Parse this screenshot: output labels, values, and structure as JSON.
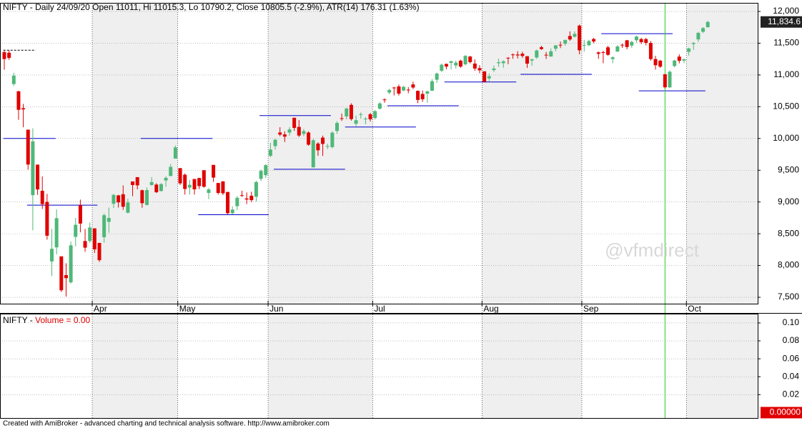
{
  "chart_data": {
    "type": "candlestick",
    "title": "NIFTY - Daily 24/09/20 Open 11011, Hi 11015.3, Lo 10790.2, Close 10805.5 (-2.9%), ATR(14) 176.31  (1.63%)",
    "watermark": "@vfmdirect",
    "footer": "Created with AmiBroker - advanced charting and technical analysis software. http://www.amibroker.com",
    "up_color": "#4fb878",
    "down_color": "#e00000",
    "categories": [
      null,
      null,
      null,
      null,
      null,
      null,
      null,
      null,
      null,
      null,
      null,
      null,
      null,
      null,
      null,
      null,
      null,
      null,
      null,
      "Apr",
      null,
      null,
      null,
      null,
      null,
      null,
      null,
      null,
      null,
      null,
      null,
      null,
      null,
      null,
      null,
      null,
      null,
      "May",
      null,
      null,
      null,
      null,
      null,
      null,
      null,
      null,
      null,
      null,
      null,
      null,
      null,
      null,
      null,
      null,
      null,
      null,
      "Jun",
      null,
      null,
      null,
      null,
      null,
      null,
      null,
      null,
      null,
      null,
      null,
      null,
      null,
      null,
      null,
      null,
      null,
      null,
      null,
      null,
      null,
      "Jul",
      null,
      null,
      null,
      null,
      null,
      null,
      null,
      null,
      null,
      null,
      null,
      null,
      null,
      null,
      null,
      null,
      null,
      null,
      null,
      null,
      null,
      null,
      "Aug",
      null,
      null,
      null,
      null,
      null,
      null,
      null,
      null,
      null,
      null,
      null,
      null,
      null,
      null,
      null,
      null,
      null,
      null,
      null,
      null,
      "Sep",
      null,
      null,
      null,
      null,
      null,
      null,
      null,
      null,
      null,
      null,
      null,
      null,
      null,
      null,
      null,
      null,
      null,
      null,
      null,
      null,
      null,
      "Oct",
      null,
      null,
      null,
      null
    ],
    "open": [
      11359,
      11350,
      10857,
      10743,
      10477,
      10139,
      9108,
      9588,
      9176,
      9001,
      8064,
      8286,
      8144,
      7849,
      7735,
      8451,
      8949,
      8385,
      8385,
      8584,
      8356,
      8446,
      8688,
      8973,
      9104,
      9122,
      8831,
      9323,
      9391,
      9185,
      8953,
      9268,
      9274,
      9173,
      9339,
      9409,
      9684,
      9533,
      9429,
      9227,
      9362,
      9377,
      9500,
      9143,
      9584,
      9299,
      9325,
      9158,
      8823,
      8934,
      9107,
      9056,
      9099,
      9083,
      9364,
      9422,
      9727,
      9880,
      10094,
      10064,
      10093,
      10326,
      10182,
      10072,
      10094,
      9545,
      9920,
      10014,
      9876,
      9864,
      10119,
      10319,
      10347,
      10529,
      10232,
      10379,
      10311,
      10382,
      10323,
      10469,
      10614,
      10723,
      10802,
      10819,
      10755,
      10769,
      10851,
      10750,
      10701,
      10706,
      10752,
      10925,
      11066,
      11174,
      11190,
      11149,
      11225,
      11168,
      11290,
      11179,
      11108,
      11057,
      10946,
      11077,
      11185,
      11186,
      11271,
      11323,
      11322,
      11334,
      11295,
      11228,
      11275,
      11437,
      11318,
      11290,
      11413,
      11475,
      11491,
      11613,
      11602,
      11777,
      11464,
      11469,
      11566,
      11355,
      11359,
      11435,
      11250,
      11369,
      11475,
      11546,
      11463,
      11546,
      11565,
      11564,
      11504,
      11251,
      11225,
      11011,
      10805,
      11141,
      11289,
      11226,
      11364,
      11487,
      11560,
      11680,
      11752
    ],
    "high": [
      11388,
      11389,
      11035,
      10751,
      10545,
      10139,
      10159,
      9588,
      9403,
      9128,
      8575,
      8883,
      8144,
      8036,
      8376,
      8749,
      9038,
      8576,
      8678,
      8588,
      8357,
      8819,
      8914,
      9128,
      9112,
      9261,
      9053,
      9324,
      9391,
      9195,
      9230,
      9392,
      9296,
      9295,
      9405,
      9599,
      9889,
      9533,
      9450,
      9347,
      9361,
      9382,
      9500,
      9219,
      9584,
      9298,
      9326,
      9158,
      8932,
      9093,
      9178,
      9150,
      9161,
      9334,
      9511,
      9598,
      9931,
      9996,
      10177,
      10113,
      10178,
      10328,
      10291,
      10149,
      10112,
      9996,
      9943,
      10046,
      9918,
      10111,
      10272,
      10393,
      10484,
      10554,
      10361,
      10409,
      10337,
      10401,
      10447,
      10572,
      10631,
      10782,
      10813,
      10848,
      10827,
      10809,
      10894,
      10755,
      10755,
      10755,
      10934,
      11038,
      11180,
      11180,
      11226,
      11226,
      11240,
      11314,
      11299,
      11246,
      11154,
      11058,
      11022,
      11147,
      11256,
      11232,
      11281,
      11338,
      11374,
      11366,
      11295,
      11256,
      11401,
      11460,
      11361,
      11419,
      11472,
      11525,
      11561,
      11687,
      11686,
      11794,
      11553,
      11556,
      11584,
      11370,
      11381,
      11459,
      11293,
      11469,
      11494,
      11552,
      11536,
      11618,
      11585,
      11584,
      11535,
      11302,
      11236,
      11015.3,
      11072,
      11240,
      11325,
      11259,
      11429,
      11519,
      11680,
      11753,
      11852
    ],
    "low": [
      11082,
      11238,
      10827,
      10294,
      10176,
      9508,
      8555,
      9113,
      8891,
      8407,
      7833,
      8176,
      7583,
      7511,
      7715,
      8304,
      8522,
      8215,
      8358,
      8198,
      8056,
      8360,
      8517,
      8905,
      8912,
      8875,
      8821,
      9091,
      9199,
      8909,
      8946,
      9256,
      9141,
      9165,
      9240,
      9405,
      9684,
      9266,
      9117,
      9117,
      9116,
      9203,
      9226,
      9044,
      9317,
      9116,
      9110,
      8807,
      8806,
      8874,
      9079,
      8968,
      8996,
      9005,
      9330,
      9376,
      9706,
      9825,
      10036,
      9944,
      10041,
      10120,
      10022,
      10036,
      9885,
      9544,
      9728,
      9726,
      9833,
      9846,
      10073,
      10277,
      10301,
      10281,
      10194,
      10311,
      10223,
      10267,
      10299,
      10458,
      10562,
      10695,
      10677,
      10676,
      10745,
      10713,
      10777,
      10555,
      10577,
      10562,
      10749,
      10875,
      11046,
      11090,
      11087,
      11102,
      11114,
      11151,
      11181,
      11067,
      11026,
      10882,
      10902,
      11048,
      11127,
      11112,
      11169,
      11255,
      11260,
      11269,
      11111,
      11145,
      11254,
      11394,
      11253,
      11289,
      11371,
      11423,
      11461,
      11537,
      11589,
      11325,
      11367,
      11452,
      11499,
      11253,
      11185,
      11303,
      11185,
      11361,
      11427,
      11404,
      11426,
      11507,
      11486,
      11465,
      11226,
      11085,
      11111,
      10790.2,
      10797,
      11121,
      11183,
      11185,
      11306,
      11394,
      11521,
      11661,
      11745
    ],
    "close": [
      11251,
      11269,
      10989,
      10451,
      10458,
      9590,
      9955,
      9197,
      8967,
      8469,
      8263,
      8745,
      7610,
      7801,
      8318,
      8641,
      8660,
      8281,
      8598,
      8254,
      8084,
      8792,
      8748,
      9111,
      8994,
      8925,
      8992,
      9267,
      9262,
      8981,
      9187,
      9313,
      9154,
      9282,
      9380,
      9553,
      9860,
      9293,
      9205,
      9270,
      9199,
      9251,
      9240,
      9197,
      9384,
      9142,
      9137,
      8823,
      8880,
      9066,
      9106,
      9039,
      9029,
      9314,
      9490,
      9580,
      9826,
      9980,
      10061,
      10029,
      10142,
      10167,
      10046,
      10116,
      9902,
      9972,
      9814,
      9914,
      9881,
      10092,
      10244,
      10311,
      10471,
      10305,
      10288,
      10383,
      10312,
      10302,
      10430,
      10552,
      10607,
      10764,
      10799,
      10706,
      10813,
      10768,
      10802,
      10607,
      10618,
      10740,
      10901,
      11022,
      11162,
      11132,
      11215,
      11194,
      11131,
      11300,
      11202,
      11102,
      11073,
      10892,
      10980,
      11101,
      11200,
      11214,
      11270,
      11322,
      11308,
      11300,
      11178,
      11247,
      11385,
      11408,
      11312,
      11372,
      11466,
      11472,
      11549,
      11559,
      11647,
      11388,
      11470,
      11535,
      11527,
      11333,
      11355,
      11317,
      11278,
      11449,
      11464,
      11440,
      11521,
      11605,
      11516,
      11505,
      11250,
      11153,
      11131,
      10805.5,
      11050,
      11227,
      11222,
      11247,
      11417,
      11503,
      11662,
      11738,
      11834.6
    ],
    "last_label": "11,834.6",
    "selected_bar": 139,
    "cursor_color": "#22cc22",
    "level_color": "#0000cc",
    "levels": [
      {
        "value": 10000,
        "start": -0.2,
        "end": 10.8
      },
      {
        "value": 8950,
        "start": 4.8,
        "end": 19.6
      },
      {
        "value": 10000,
        "start": 28.7,
        "end": 43.8
      },
      {
        "value": 8800,
        "start": 40.8,
        "end": 55.6
      },
      {
        "value": 10360,
        "start": 53.7,
        "end": 68.7
      },
      {
        "value": 9515,
        "start": 56.7,
        "end": 71.7
      },
      {
        "value": 10180,
        "start": 71.7,
        "end": 86.6
      },
      {
        "value": 10515,
        "start": 80.6,
        "end": 95.6
      },
      {
        "value": 10890,
        "start": 92.6,
        "end": 107.7
      },
      {
        "value": 11010,
        "start": 108.6,
        "end": 123.6
      },
      {
        "value": 11650,
        "start": 125.6,
        "end": 140.6
      },
      {
        "value": 10750,
        "start": 133.5,
        "end": 147.5
      }
    ],
    "dashed_levels": [
      {
        "value": 11390,
        "start": -0.2,
        "end": 6.6
      }
    ],
    "ylim": [
      7399,
      12124
    ],
    "yticks": [
      {
        "value": 7500,
        "label": "7,500"
      },
      {
        "value": 8000,
        "label": "8,000"
      },
      {
        "value": 8500,
        "label": "8,500"
      },
      {
        "value": 9000,
        "label": "9,000"
      },
      {
        "value": 9500,
        "label": "9,500"
      },
      {
        "value": 10000,
        "label": "10,000"
      },
      {
        "value": 10500,
        "label": "10,500"
      },
      {
        "value": 11000,
        "label": "11,000"
      },
      {
        "value": 11500,
        "label": "11,500"
      },
      {
        "value": 12000,
        "label": "12,000"
      }
    ],
    "grid": true,
    "volume_prefix": "NIFTY -",
    "volume_title": "Volume = 0.00",
    "volume_last_label": "0.00000",
    "volume_last_value": 0,
    "volume_ylim": [
      -0.006,
      0.1095
    ],
    "volume_yticks": [
      0.02,
      0.04,
      0.06,
      0.08,
      {
        "value": 0.1,
        "label": "0.10"
      }
    ]
  }
}
